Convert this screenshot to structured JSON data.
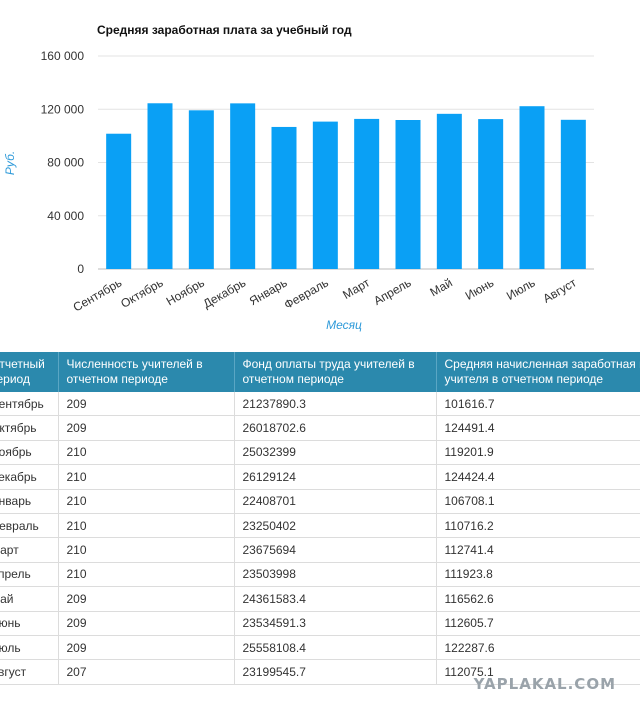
{
  "chart_data": {
    "type": "bar",
    "title": "Средняя заработная плата за учебный год",
    "xlabel": "Месяц",
    "ylabel": "Руб.",
    "ylim": [
      0,
      160000
    ],
    "yticks": [
      "0",
      "40 000",
      "80 000",
      "120 000",
      "160 000"
    ],
    "yticks_values": [
      0,
      40000,
      80000,
      120000,
      160000
    ],
    "grid": true,
    "bar_color": "#0aa0f5",
    "categories": [
      "Сентябрь",
      "Октябрь",
      "Ноябрь",
      "Декабрь",
      "Январь",
      "Февраль",
      "Март",
      "Апрель",
      "Май",
      "Июнь",
      "Июль",
      "Август"
    ],
    "values": [
      101616.7,
      124491.4,
      119201.9,
      124424.4,
      106708.1,
      110716.2,
      112741.4,
      111923.8,
      116562.6,
      112605.7,
      122287.6,
      112075.1
    ]
  },
  "table": {
    "headers": [
      "Отчетный период",
      "Численность учителей в отчетном периоде",
      "Фонд оплаты труда учителей в отчетном периоде",
      "Средняя начисленная заработная плата учителя в отчетном периоде"
    ],
    "rows": [
      [
        "Сентябрь",
        "209",
        "21237890.3",
        "101616.7"
      ],
      [
        "Октябрь",
        "209",
        "26018702.6",
        "124491.4"
      ],
      [
        "Ноябрь",
        "210",
        "25032399",
        "119201.9"
      ],
      [
        "Декабрь",
        "210",
        "26129124",
        "124424.4"
      ],
      [
        "Январь",
        "210",
        "22408701",
        "106708.1"
      ],
      [
        "Февраль",
        "210",
        "23250402",
        "110716.2"
      ],
      [
        "Март",
        "210",
        "23675694",
        "112741.4"
      ],
      [
        "Апрель",
        "210",
        "23503998",
        "111923.8"
      ],
      [
        "Май",
        "209",
        "24361583.4",
        "116562.6"
      ],
      [
        "Июнь",
        "209",
        "23534591.3",
        "112605.7"
      ],
      [
        "Июль",
        "209",
        "25558108.4",
        "122287.6"
      ],
      [
        "Август",
        "207",
        "23199545.7",
        "112075.1"
      ]
    ]
  },
  "watermark": "YAPLAKAL.COM"
}
